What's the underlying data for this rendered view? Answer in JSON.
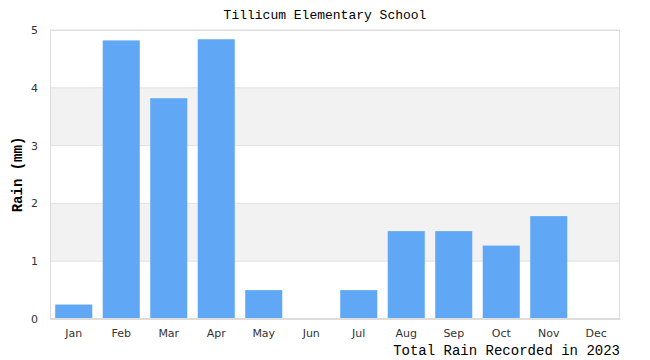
{
  "chart_data": {
    "type": "bar",
    "title": "Tillicum Elementary School",
    "x_label": "Total Rain Recorded in 2023",
    "y_label": "Rain (mm)",
    "categories": [
      "Jan",
      "Feb",
      "Mar",
      "Apr",
      "May",
      "Jun",
      "Jul",
      "Aug",
      "Sep",
      "Oct",
      "Nov",
      "Dec"
    ],
    "values": [
      0.25,
      4.82,
      3.82,
      4.84,
      0.5,
      0,
      0.5,
      1.52,
      1.52,
      1.27,
      1.78,
      0
    ],
    "color": "#60a8f5",
    "ylim": [
      0,
      5
    ],
    "yticks": [
      0,
      1,
      2,
      3,
      4,
      5
    ],
    "grid": true
  }
}
